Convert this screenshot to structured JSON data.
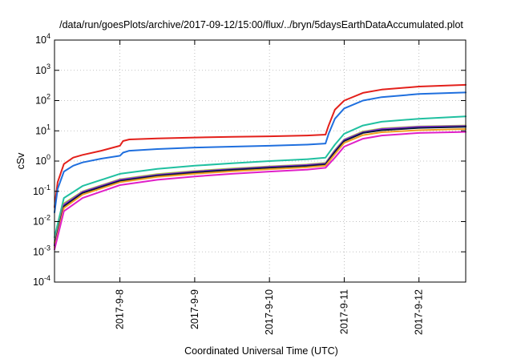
{
  "chart_data": {
    "type": "line",
    "title": "/data/run/goesPlots/archive/2017-09-12/15:00/flux/../bryn/5daysEarthDataAccumulated.plot",
    "xlabel": "Coordinated Universal Time (UTC)",
    "ylabel": "cSv",
    "y_scale": "log",
    "ylim": [
      0.0001,
      10000
    ],
    "y_ticks": [
      {
        "value": 0.0001,
        "base": "10",
        "exp": "-4"
      },
      {
        "value": 0.001,
        "base": "10",
        "exp": "-3"
      },
      {
        "value": 0.01,
        "base": "10",
        "exp": "-2"
      },
      {
        "value": 0.1,
        "base": "10",
        "exp": "-1"
      },
      {
        "value": 1,
        "base": "10",
        "exp": "0"
      },
      {
        "value": 10,
        "base": "10",
        "exp": "1"
      },
      {
        "value": 100,
        "base": "10",
        "exp": "2"
      },
      {
        "value": 1000,
        "base": "10",
        "exp": "3"
      },
      {
        "value": 10000,
        "base": "10",
        "exp": "4"
      }
    ],
    "xlim": [
      "2017-09-07 03:00",
      "2017-09-12 15:00"
    ],
    "x_ticks": [
      {
        "value": "2017-09-08 00:00",
        "label": "2017-9-8"
      },
      {
        "value": "2017-09-09 00:00",
        "label": "2017-9-9"
      },
      {
        "value": "2017-09-10 00:00",
        "label": "2017-9-10"
      },
      {
        "value": "2017-09-11 00:00",
        "label": "2017-9-11"
      },
      {
        "value": "2017-09-12 00:00",
        "label": "2017-9-12"
      }
    ],
    "grid": true,
    "legend": "none",
    "series": [
      {
        "color": "#e3201b",
        "x": [
          "2017-09-07 03:00",
          "2017-09-07 04:00",
          "2017-09-07 06:00",
          "2017-09-07 09:00",
          "2017-09-07 12:00",
          "2017-09-07 18:00",
          "2017-09-08 00:00",
          "2017-09-08 01:00",
          "2017-09-08 03:00",
          "2017-09-08 12:00",
          "2017-09-09 00:00",
          "2017-09-09 12:00",
          "2017-09-10 00:00",
          "2017-09-10 12:00",
          "2017-09-10 18:00",
          "2017-09-10 19:00",
          "2017-09-10 21:00",
          "2017-09-11 00:00",
          "2017-09-11 06:00",
          "2017-09-11 12:00",
          "2017-09-12 00:00",
          "2017-09-12 15:00"
        ],
        "y": [
          0.03,
          0.2,
          0.8,
          1.3,
          1.6,
          2.2,
          3.2,
          4.6,
          5.2,
          5.6,
          6.0,
          6.3,
          6.6,
          7.0,
          7.5,
          15,
          50,
          100,
          180,
          230,
          290,
          330
        ]
      },
      {
        "color": "#1f6fde",
        "x": [
          "2017-09-07 03:00",
          "2017-09-07 04:00",
          "2017-09-07 06:00",
          "2017-09-07 09:00",
          "2017-09-07 12:00",
          "2017-09-07 18:00",
          "2017-09-08 00:00",
          "2017-09-08 01:00",
          "2017-09-08 03:00",
          "2017-09-08 12:00",
          "2017-09-09 00:00",
          "2017-09-09 12:00",
          "2017-09-10 00:00",
          "2017-09-10 12:00",
          "2017-09-10 18:00",
          "2017-09-10 19:00",
          "2017-09-10 21:00",
          "2017-09-11 00:00",
          "2017-09-11 06:00",
          "2017-09-11 12:00",
          "2017-09-12 00:00",
          "2017-09-12 15:00"
        ],
        "y": [
          0.02,
          0.12,
          0.45,
          0.7,
          0.9,
          1.2,
          1.5,
          1.9,
          2.2,
          2.5,
          2.8,
          3.0,
          3.2,
          3.5,
          3.8,
          8,
          25,
          55,
          100,
          130,
          165,
          185
        ]
      },
      {
        "color": "#20c0a0",
        "x": [
          "2017-09-07 03:00",
          "2017-09-07 06:00",
          "2017-09-07 12:00",
          "2017-09-08 00:00",
          "2017-09-08 12:00",
          "2017-09-09 00:00",
          "2017-09-09 12:00",
          "2017-09-10 00:00",
          "2017-09-10 12:00",
          "2017-09-10 18:00",
          "2017-09-10 21:00",
          "2017-09-11 00:00",
          "2017-09-11 06:00",
          "2017-09-11 12:00",
          "2017-09-12 00:00",
          "2017-09-12 15:00"
        ],
        "y": [
          0.003,
          0.06,
          0.15,
          0.38,
          0.55,
          0.7,
          0.85,
          1.0,
          1.15,
          1.3,
          3.5,
          8,
          15,
          20,
          25,
          30
        ]
      },
      {
        "color": "#a8d030",
        "x": [
          "2017-09-07 03:00",
          "2017-09-07 06:00",
          "2017-09-07 12:00",
          "2017-09-08 00:00",
          "2017-09-08 12:00",
          "2017-09-09 00:00",
          "2017-09-09 12:00",
          "2017-09-10 00:00",
          "2017-09-10 12:00",
          "2017-09-10 18:00",
          "2017-09-10 21:00",
          "2017-09-11 00:00",
          "2017-09-11 06:00",
          "2017-09-11 12:00",
          "2017-09-12 00:00",
          "2017-09-12 15:00"
        ],
        "y": [
          0.002,
          0.04,
          0.1,
          0.25,
          0.37,
          0.47,
          0.57,
          0.67,
          0.77,
          0.87,
          2.3,
          5.2,
          9.5,
          12,
          14,
          15
        ]
      },
      {
        "color": "#8a2be2",
        "x": [
          "2017-09-07 03:00",
          "2017-09-07 06:00",
          "2017-09-07 12:00",
          "2017-09-08 00:00",
          "2017-09-08 12:00",
          "2017-09-09 00:00",
          "2017-09-09 12:00",
          "2017-09-10 00:00",
          "2017-09-10 12:00",
          "2017-09-10 18:00",
          "2017-09-10 21:00",
          "2017-09-11 00:00",
          "2017-09-11 06:00",
          "2017-09-11 12:00",
          "2017-09-12 00:00",
          "2017-09-12 15:00"
        ],
        "y": [
          0.0018,
          0.036,
          0.095,
          0.24,
          0.35,
          0.45,
          0.54,
          0.64,
          0.74,
          0.83,
          2.2,
          5.0,
          9.0,
          11.5,
          13.5,
          14.5
        ]
      },
      {
        "color": "#0a1840",
        "x": [
          "2017-09-07 03:00",
          "2017-09-07 06:00",
          "2017-09-07 12:00",
          "2017-09-08 00:00",
          "2017-09-08 12:00",
          "2017-09-09 00:00",
          "2017-09-09 12:00",
          "2017-09-10 00:00",
          "2017-09-10 12:00",
          "2017-09-10 18:00",
          "2017-09-10 21:00",
          "2017-09-11 00:00",
          "2017-09-11 06:00",
          "2017-09-11 12:00",
          "2017-09-12 00:00",
          "2017-09-12 15:00"
        ],
        "y": [
          0.0016,
          0.032,
          0.088,
          0.22,
          0.33,
          0.42,
          0.51,
          0.6,
          0.69,
          0.78,
          2.0,
          4.6,
          8.5,
          10.5,
          12.5,
          13.5
        ]
      },
      {
        "color": "#f0a020",
        "x": [
          "2017-09-07 03:00",
          "2017-09-07 06:00",
          "2017-09-07 12:00",
          "2017-09-08 00:00",
          "2017-09-08 12:00",
          "2017-09-09 00:00",
          "2017-09-09 12:00",
          "2017-09-10 00:00",
          "2017-09-10 12:00",
          "2017-09-10 18:00",
          "2017-09-10 21:00",
          "2017-09-11 00:00",
          "2017-09-11 06:00",
          "2017-09-11 12:00",
          "2017-09-12 00:00",
          "2017-09-12 15:00"
        ],
        "y": [
          0.0014,
          0.028,
          0.078,
          0.2,
          0.3,
          0.38,
          0.46,
          0.54,
          0.62,
          0.7,
          1.7,
          4.0,
          7.2,
          9.0,
          10.5,
          11.5
        ]
      },
      {
        "color": "#e020c8",
        "x": [
          "2017-09-07 03:00",
          "2017-09-07 06:00",
          "2017-09-07 12:00",
          "2017-09-08 00:00",
          "2017-09-08 12:00",
          "2017-09-09 00:00",
          "2017-09-09 12:00",
          "2017-09-10 00:00",
          "2017-09-10 12:00",
          "2017-09-10 18:00",
          "2017-09-10 21:00",
          "2017-09-11 00:00",
          "2017-09-11 06:00",
          "2017-09-11 12:00",
          "2017-09-12 00:00",
          "2017-09-12 15:00"
        ],
        "y": [
          0.0012,
          0.022,
          0.06,
          0.16,
          0.24,
          0.31,
          0.38,
          0.45,
          0.52,
          0.6,
          1.3,
          3.0,
          5.5,
          7.0,
          8.5,
          9.2
        ]
      }
    ]
  }
}
